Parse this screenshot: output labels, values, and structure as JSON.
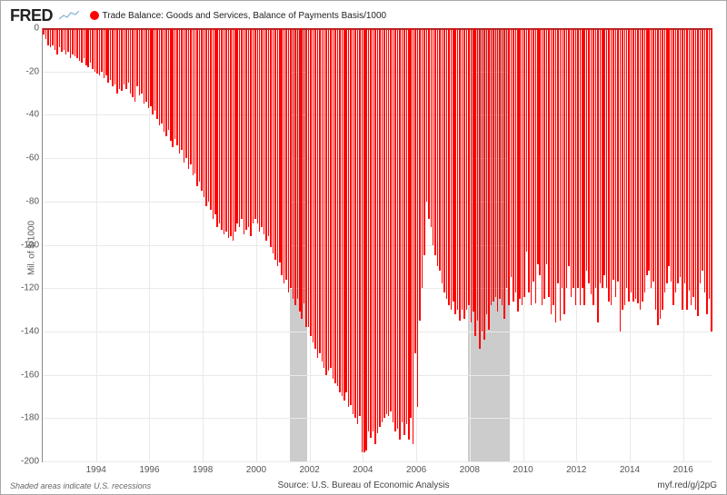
{
  "logo_text": "FRED",
  "legend": {
    "dot_color": "#ff0000",
    "text": "Trade Balance: Goods and Services, Balance of Payments Basis/1000"
  },
  "chart": {
    "type": "bar",
    "bar_color": "#ff0000",
    "background_color": "#ffffff",
    "grid_color": "#e9e9e9",
    "recession_color": "#cccccc",
    "axis_color": "#888888",
    "y_label": "Mil. of $/1000",
    "label_fontsize": 10,
    "ylim": [
      -200,
      0
    ],
    "ytick_step": 20,
    "x_start": 1992,
    "x_end": 2017.1,
    "x_tick_start": 1994,
    "x_tick_step": 2,
    "recessions": [
      {
        "start": 2001.25,
        "end": 2001.9
      },
      {
        "start": 2007.95,
        "end": 2009.5
      }
    ],
    "values": [
      -3,
      -5,
      -8,
      -9,
      -8,
      -10,
      -12,
      -9,
      -11,
      -10,
      -12,
      -11,
      -14,
      -12,
      -13,
      -14,
      -15,
      -16,
      -14,
      -17,
      -18,
      -16,
      -19,
      -20,
      -21,
      -22,
      -20,
      -23,
      -22,
      -25,
      -24,
      -27,
      -26,
      -30,
      -28,
      -29,
      -26,
      -28,
      -25,
      -30,
      -32,
      -34,
      -27,
      -31,
      -30,
      -35,
      -34,
      -37,
      -36,
      -40,
      -38,
      -42,
      -45,
      -44,
      -48,
      -50,
      -47,
      -52,
      -55,
      -51,
      -54,
      -58,
      -56,
      -62,
      -60,
      -65,
      -63,
      -68,
      -67,
      -73,
      -71,
      -75,
      -78,
      -82,
      -80,
      -84,
      -88,
      -86,
      -92,
      -90,
      -93,
      -95,
      -94,
      -97,
      -96,
      -98,
      -94,
      -90,
      -92,
      -88,
      -95,
      -93,
      -92,
      -96,
      -90,
      -88,
      -90,
      -94,
      -92,
      -95,
      -98,
      -96,
      -101,
      -104,
      -107,
      -110,
      -108,
      -114,
      -118,
      -116,
      -122,
      -120,
      -125,
      -128,
      -125,
      -131,
      -134,
      -127,
      -138,
      -138,
      -142,
      -145,
      -148,
      -152,
      -150,
      -154,
      -157,
      -160,
      -158,
      -157,
      -162,
      -164,
      -165,
      -168,
      -170,
      -172,
      -168,
      -175,
      -174,
      -178,
      -180,
      -183,
      -179,
      -196,
      -196,
      -195,
      -186,
      -189,
      -186,
      -192,
      -187,
      -184,
      -182,
      -180,
      -178,
      -179,
      -177,
      -182,
      -186,
      -185,
      -190,
      -182,
      -188,
      -183,
      -190,
      -180,
      -192,
      -150,
      -175,
      -135,
      -120,
      -105,
      -80,
      -88,
      -92,
      -100,
      -105,
      -110,
      -112,
      -118,
      -122,
      -125,
      -128,
      -130,
      -126,
      -132,
      -130,
      -135,
      -130,
      -134,
      -130,
      -128,
      -136,
      -131,
      -142,
      -135,
      -148,
      -140,
      -144,
      -132,
      -139,
      -128,
      -126,
      -124,
      -131,
      -125,
      -128,
      -134,
      -120,
      -128,
      -115,
      -126,
      -122,
      -131,
      -125,
      -128,
      -124,
      -103,
      -122,
      -128,
      -117,
      -127,
      -109,
      -114,
      -128,
      -125,
      -109,
      -124,
      -132,
      -128,
      -136,
      -118,
      -135,
      -120,
      -132,
      -120,
      -110,
      -124,
      -120,
      -128,
      -120,
      -128,
      -120,
      -128,
      -112,
      -118,
      -123,
      -128,
      -120,
      -136,
      -118,
      -120,
      -114,
      -120,
      -126,
      -128,
      -116,
      -124,
      -117,
      -140,
      -130,
      -128,
      -120,
      -126,
      -122,
      -126,
      -125,
      -127,
      -130,
      -126,
      -122,
      -114,
      -112,
      -120,
      -117,
      -130,
      -137,
      -134,
      -130,
      -122,
      -118,
      -110,
      -117,
      -128,
      -122,
      -118,
      -115,
      -130,
      -118,
      -130,
      -121,
      -128,
      -124,
      -130,
      -133,
      -118,
      -112,
      -122,
      -132,
      -125,
      -140
    ]
  },
  "footer": {
    "left": "Shaded areas indicate U.S. recessions",
    "center": "Source: U.S. Bureau of Economic Analysis",
    "right": "myf.red/g/j2pG"
  }
}
